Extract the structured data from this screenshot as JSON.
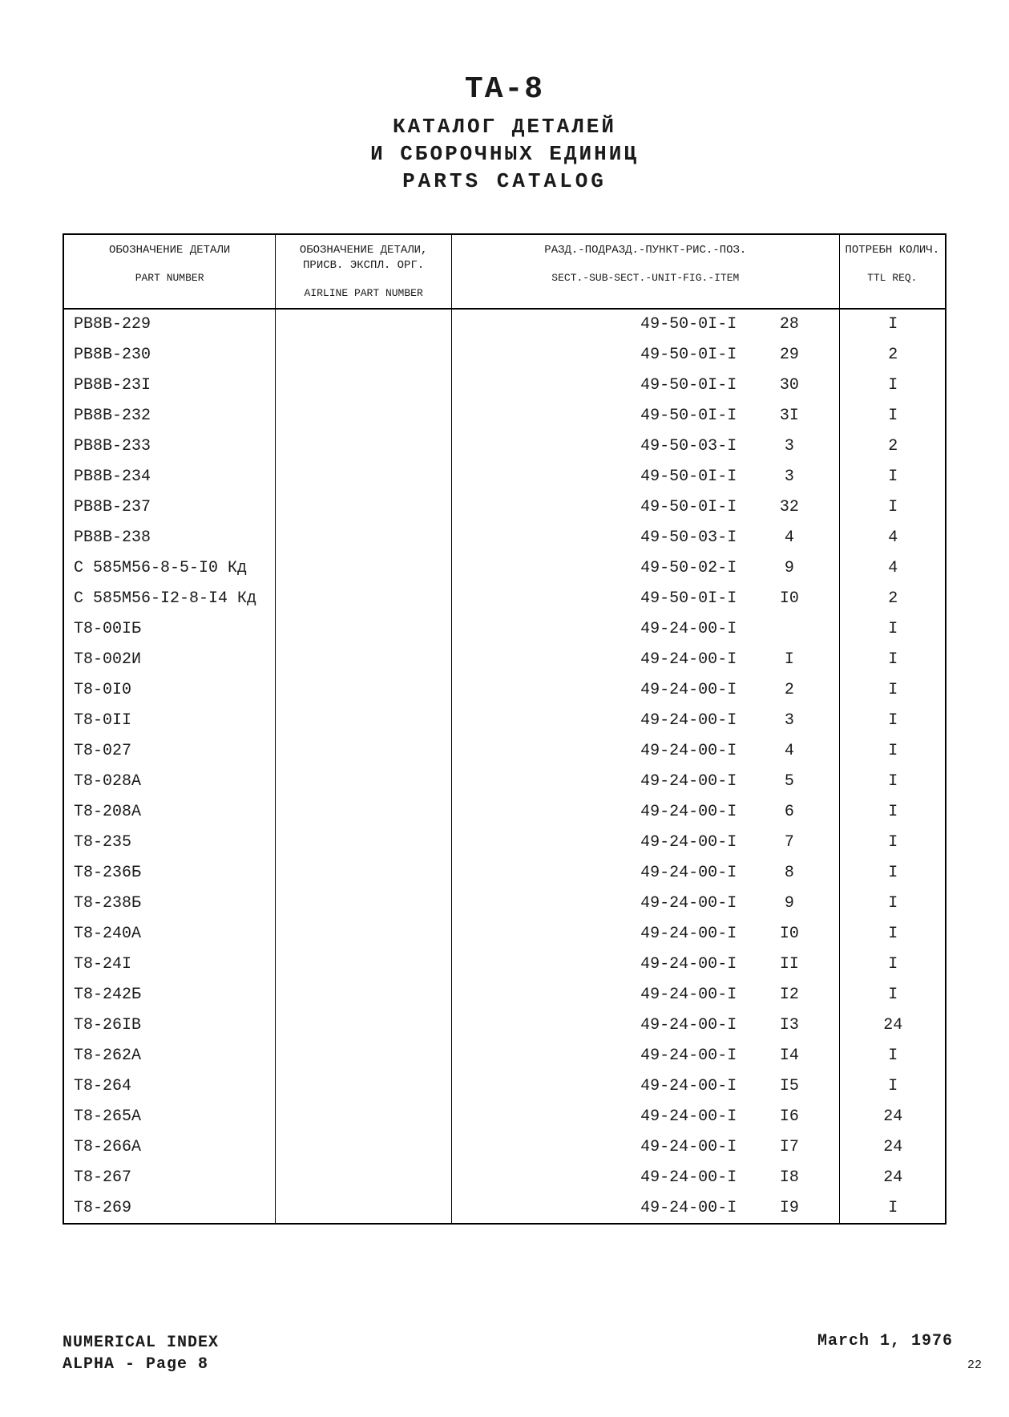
{
  "header": {
    "model": "TA-8",
    "title_ru_line1": "КАТАЛОГ ДЕТАЛЕЙ",
    "title_ru_line2": "И СБОРОЧНЫХ ЕДИНИЦ",
    "title_en": "PARTS CATALOG"
  },
  "columns": {
    "part_ru": "ОБОЗНАЧЕНИЕ ДЕТАЛИ",
    "part_en": "PART NUMBER",
    "airline_ru": "ОБОЗНАЧЕНИЕ ДЕТАЛИ, ПРИСВ. ЭКСПЛ. ОРГ.",
    "airline_en": "AIRLINE PART NUMBER",
    "sect_ru": "РАЗД.-ПОДРАЗД.-ПУНКТ-РИС.-ПОЗ.",
    "sect_en": "SECT.-SUB-SECT.-UNIT-FIG.-ITEM",
    "req_ru": "ПОТРЕБН КОЛИЧ.",
    "req_en": "TTL REQ."
  },
  "rows": [
    {
      "part": "РВ8В-229",
      "airline": "",
      "sect": "49-50-0I-I",
      "item": "28",
      "req": "I"
    },
    {
      "part": "РВ8В-230",
      "airline": "",
      "sect": "49-50-0I-I",
      "item": "29",
      "req": "2"
    },
    {
      "part": "РВ8В-23I",
      "airline": "",
      "sect": "49-50-0I-I",
      "item": "30",
      "req": "I"
    },
    {
      "part": "РВ8В-232",
      "airline": "",
      "sect": "49-50-0I-I",
      "item": "3I",
      "req": "I"
    },
    {
      "part": "РВ8В-233",
      "airline": "",
      "sect": "49-50-03-I",
      "item": "3",
      "req": "2"
    },
    {
      "part": "РВ8В-234",
      "airline": "",
      "sect": "49-50-0I-I",
      "item": "3",
      "req": "I"
    },
    {
      "part": "РВ8В-237",
      "airline": "",
      "sect": "49-50-0I-I",
      "item": "32",
      "req": "I"
    },
    {
      "part": "РВ8В-238",
      "airline": "",
      "sect": "49-50-03-I",
      "item": "4",
      "req": "4"
    },
    {
      "part": "С 585М56-8-5-I0 Кд",
      "airline": "",
      "sect": "49-50-02-I",
      "item": "9",
      "req": "4"
    },
    {
      "part": "С 585М56-I2-8-I4 Кд",
      "airline": "",
      "sect": "49-50-0I-I",
      "item": "I0",
      "req": "2"
    },
    {
      "part": "Т8-00IБ",
      "airline": "",
      "sect": "49-24-00-I",
      "item": "",
      "req": "I"
    },
    {
      "part": "Т8-002И",
      "airline": "",
      "sect": "49-24-00-I",
      "item": "I",
      "req": "I"
    },
    {
      "part": "Т8-0I0",
      "airline": "",
      "sect": "49-24-00-I",
      "item": "2",
      "req": "I"
    },
    {
      "part": "Т8-0II",
      "airline": "",
      "sect": "49-24-00-I",
      "item": "3",
      "req": "I"
    },
    {
      "part": "Т8-027",
      "airline": "",
      "sect": "49-24-00-I",
      "item": "4",
      "req": "I"
    },
    {
      "part": "Т8-028А",
      "airline": "",
      "sect": "49-24-00-I",
      "item": "5",
      "req": "I"
    },
    {
      "part": "Т8-208А",
      "airline": "",
      "sect": "49-24-00-I",
      "item": "6",
      "req": "I"
    },
    {
      "part": "Т8-235",
      "airline": "",
      "sect": "49-24-00-I",
      "item": "7",
      "req": "I"
    },
    {
      "part": "Т8-236Б",
      "airline": "",
      "sect": "49-24-00-I",
      "item": "8",
      "req": "I"
    },
    {
      "part": "Т8-238Б",
      "airline": "",
      "sect": "49-24-00-I",
      "item": "9",
      "req": "I"
    },
    {
      "part": "Т8-240А",
      "airline": "",
      "sect": "49-24-00-I",
      "item": "I0",
      "req": "I"
    },
    {
      "part": "Т8-24I",
      "airline": "",
      "sect": "49-24-00-I",
      "item": "II",
      "req": "I"
    },
    {
      "part": "Т8-242Б",
      "airline": "",
      "sect": "49-24-00-I",
      "item": "I2",
      "req": "I"
    },
    {
      "part": "Т8-26IВ",
      "airline": "",
      "sect": "49-24-00-I",
      "item": "I3",
      "req": "24"
    },
    {
      "part": "Т8-262А",
      "airline": "",
      "sect": "49-24-00-I",
      "item": "I4",
      "req": "I"
    },
    {
      "part": "Т8-264",
      "airline": "",
      "sect": "49-24-00-I",
      "item": "I5",
      "req": "I"
    },
    {
      "part": "Т8-265А",
      "airline": "",
      "sect": "49-24-00-I",
      "item": "I6",
      "req": "24"
    },
    {
      "part": "Т8-266А",
      "airline": "",
      "sect": "49-24-00-I",
      "item": "I7",
      "req": "24"
    },
    {
      "part": "Т8-267",
      "airline": "",
      "sect": "49-24-00-I",
      "item": "I8",
      "req": "24"
    },
    {
      "part": "Т8-269",
      "airline": "",
      "sect": "49-24-00-I",
      "item": "I9",
      "req": "I"
    }
  ],
  "footer": {
    "index_label": "NUMERICAL INDEX",
    "alpha_label": "ALPHA - Page 8",
    "date": "March 1, 1976",
    "page_number": "22"
  }
}
